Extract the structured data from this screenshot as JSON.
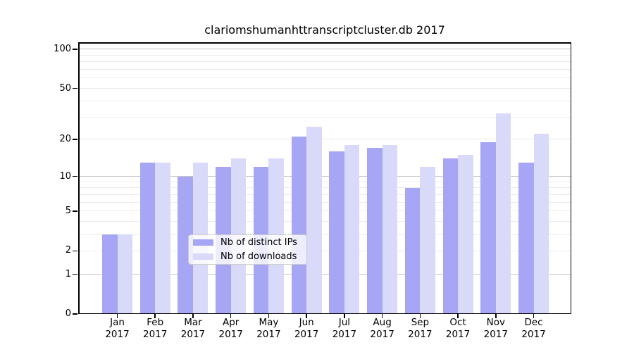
{
  "chart_data": {
    "type": "bar",
    "title": "clariomshumanhttranscriptcluster.db 2017",
    "y_scale": "log1p",
    "grid": true,
    "months": [
      "Jan",
      "Feb",
      "Mar",
      "Apr",
      "May",
      "Jun",
      "Jul",
      "Aug",
      "Sep",
      "Oct",
      "Nov",
      "Dec"
    ],
    "year": "2017",
    "series": [
      {
        "name": "Nb of distinct IPs",
        "color": "#a6a6f5",
        "values": [
          3,
          13,
          10,
          12,
          12,
          21,
          16,
          17,
          8,
          14,
          19,
          13
        ]
      },
      {
        "name": "Nb of downloads",
        "color": "#d9d9fa",
        "values": [
          3,
          13,
          13,
          14,
          14,
          25,
          18,
          18,
          12,
          15,
          32,
          22
        ]
      }
    ],
    "y_ticks": [
      0,
      1,
      2,
      5,
      10,
      20,
      50,
      100
    ],
    "y_gridlines_minor": [
      3,
      4,
      6,
      7,
      8,
      9,
      30,
      40,
      60,
      70,
      80,
      90
    ],
    "ylim": [
      0,
      113
    ],
    "legend_position": "bottom-center",
    "legend_labels": [
      "Nb of distinct IPs",
      "Nb of downloads"
    ]
  }
}
